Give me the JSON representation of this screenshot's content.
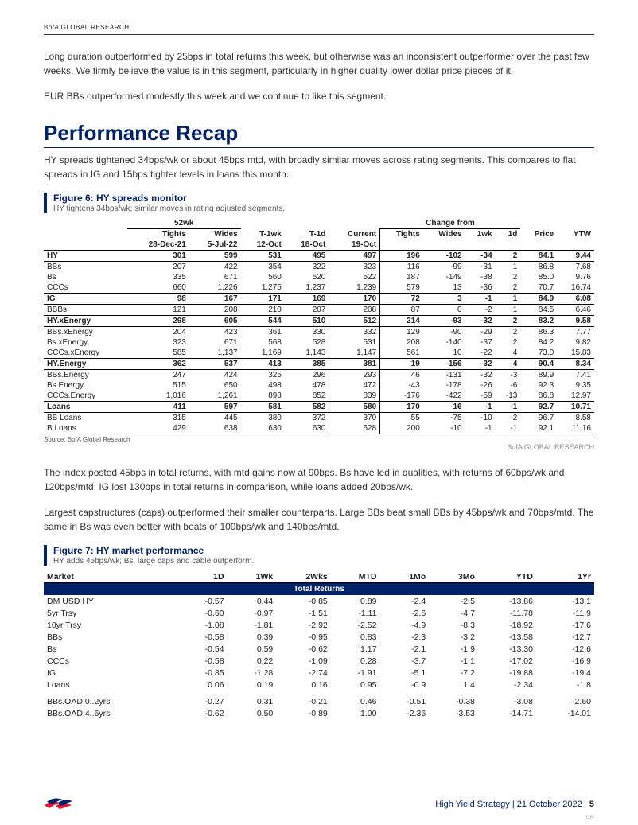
{
  "header": {
    "brand": "BofA GLOBAL RESEARCH"
  },
  "intro": {
    "p1": "Long duration outperformed by 25bps in total returns this week, but otherwise was an inconsistent outperformer over the past few weeks. We firmly believe the value is in this segment, particularly in higher quality lower dollar price pieces of it.",
    "p2": "EUR BBs outperformed modestly this week and we continue to like this segment."
  },
  "section": {
    "title": "Performance Recap",
    "lead": "HY spreads tightened 34bps/wk or about 45bps mtd, with broadly similar moves across rating segments. This compares to flat spreads in IG and 15bps tighter levels in loans this month."
  },
  "fig6": {
    "title": "Figure 6: HY spreads monitor",
    "sub": "HY tightens 34bps/wk; similar moves in rating adjusted segments.",
    "source": "Source: BofA Global Research",
    "attrib": "BofA GLOBAL RESEARCH",
    "head_top": {
      "w52": "52wk",
      "chg": "Change from"
    },
    "head_mid": {
      "tights": "Tights",
      "wides": "Wides",
      "t1wk": "T-1wk",
      "t1d": "T-1d",
      "current": "Current",
      "ct": "Tights",
      "cw": "Wides",
      "c1w": "1wk",
      "c1d": "1d",
      "price": "Price",
      "ytw": "YTW"
    },
    "head_dates": {
      "tights": "28-Dec-21",
      "wides": "5-Jul-22",
      "t1wk": "12-Oct",
      "t1d": "18-Oct",
      "current": "19-Oct"
    },
    "groups": [
      {
        "name": "HY",
        "head": [
          "301",
          "599",
          "531",
          "495",
          "497",
          "196",
          "-102",
          "-34",
          "2",
          "84.1",
          "9.44"
        ],
        "rows": [
          {
            "label": "BBs",
            "v": [
              "207",
              "422",
              "354",
              "322",
              "323",
              "116",
              "-99",
              "-31",
              "1",
              "86.8",
              "7.68"
            ]
          },
          {
            "label": "Bs",
            "v": [
              "335",
              "671",
              "560",
              "520",
              "522",
              "187",
              "-149",
              "-38",
              "2",
              "85.0",
              "9.76"
            ]
          },
          {
            "label": "CCCs",
            "v": [
              "660",
              "1,226",
              "1,275",
              "1,237",
              "1,239",
              "579",
              "13",
              "-36",
              "2",
              "70.7",
              "16.74"
            ]
          }
        ]
      },
      {
        "name": "IG",
        "head": [
          "98",
          "167",
          "171",
          "169",
          "170",
          "72",
          "3",
          "-1",
          "1",
          "84.9",
          "6.08"
        ],
        "rows": [
          {
            "label": "BBBs",
            "v": [
              "121",
              "208",
              "210",
              "207",
              "208",
              "87",
              "0",
              "-2",
              "1",
              "84.5",
              "6.46"
            ]
          }
        ]
      },
      {
        "name": "HY.xEnergy",
        "head": [
          "298",
          "605",
          "544",
          "510",
          "512",
          "214",
          "-93",
          "-32",
          "2",
          "83.2",
          "9.58"
        ],
        "rows": [
          {
            "label": "BBs.xEnergy",
            "v": [
              "204",
              "423",
              "361",
              "330",
              "332",
              "129",
              "-90",
              "-29",
              "2",
              "86.3",
              "7.77"
            ]
          },
          {
            "label": "Bs.xEnergy",
            "v": [
              "323",
              "671",
              "568",
              "528",
              "531",
              "208",
              "-140",
              "-37",
              "2",
              "84.2",
              "9.82"
            ]
          },
          {
            "label": "CCCs.xEnergy",
            "v": [
              "585",
              "1,137",
              "1,169",
              "1,143",
              "1,147",
              "561",
              "10",
              "-22",
              "4",
              "73.0",
              "15.83"
            ]
          }
        ]
      },
      {
        "name": "HY.Energy",
        "head": [
          "362",
          "537",
          "413",
          "385",
          "381",
          "19",
          "-156",
          "-32",
          "-4",
          "90.4",
          "8.34"
        ],
        "rows": [
          {
            "label": "BBs.Energy",
            "v": [
              "247",
              "424",
              "325",
              "296",
              "293",
              "46",
              "-131",
              "-32",
              "-3",
              "89.9",
              "7.41"
            ]
          },
          {
            "label": "Bs.Energy",
            "v": [
              "515",
              "650",
              "498",
              "478",
              "472",
              "-43",
              "-178",
              "-26",
              "-6",
              "92.3",
              "9.35"
            ]
          },
          {
            "label": "CCCs.Energy",
            "v": [
              "1,016",
              "1,261",
              "898",
              "852",
              "839",
              "-176",
              "-422",
              "-59",
              "-13",
              "86.8",
              "12.97"
            ]
          }
        ]
      },
      {
        "name": "Loans",
        "head": [
          "411",
          "597",
          "581",
          "582",
          "580",
          "170",
          "-16",
          "-1",
          "-1",
          "92.7",
          "10.71"
        ],
        "rows": [
          {
            "label": "BB Loans",
            "v": [
              "315",
              "445",
              "380",
              "372",
              "370",
              "55",
              "-75",
              "-10",
              "-2",
              "96.7",
              "8.58"
            ]
          },
          {
            "label": "B Loans",
            "v": [
              "429",
              "638",
              "630",
              "630",
              "628",
              "200",
              "-10",
              "-1",
              "-1",
              "92.1",
              "11.16"
            ]
          }
        ]
      }
    ]
  },
  "mid": {
    "p1": "The index posted 45bps in total returns, with mtd gains now at 90bps. Bs have led in qualities, with returns of 60bps/wk and 120bps/mtd. IG lost 130bps in total returns in comparison, while loans added 20bps/wk.",
    "p2": "Largest capstructures (caps) outperformed their smaller counterparts. Large BBs beat small BBs by 45bps/wk and 70bps/mtd. The same in Bs was even better with beats of 100bps/wk and 140bps/mtd."
  },
  "fig7": {
    "title": "Figure 7: HY market performance",
    "sub": "HY adds 45bps/wk; Bs, large caps and cable outperform.",
    "cols": [
      "Market",
      "1D",
      "1Wk",
      "2Wks",
      "MTD",
      "1Mo",
      "3Mo",
      "YTD",
      "1Yr"
    ],
    "sub_header": "Total Returns",
    "rows": [
      {
        "label": "DM USD HY",
        "v": [
          "-0.57",
          "0.44",
          "-0.85",
          "0.89",
          "-2.4",
          "-2.5",
          "-13.86",
          "-13.1"
        ]
      },
      {
        "label": "5yr Trsy",
        "v": [
          "-0.60",
          "-0.97",
          "-1.51",
          "-1.11",
          "-2.6",
          "-4.7",
          "-11.78",
          "-11.9"
        ]
      },
      {
        "label": "10yr Trsy",
        "v": [
          "-1.08",
          "-1.81",
          "-2.92",
          "-2.52",
          "-4.9",
          "-8.3",
          "-18.92",
          "-17.6"
        ]
      },
      {
        "label": "BBs",
        "v": [
          "-0.58",
          "0.39",
          "-0.95",
          "0.83",
          "-2.3",
          "-3.2",
          "-13.58",
          "-12.7"
        ]
      },
      {
        "label": "Bs",
        "v": [
          "-0.54",
          "0.59",
          "-0.62",
          "1.17",
          "-2.1",
          "-1.9",
          "-13.30",
          "-12.6"
        ]
      },
      {
        "label": "CCCs",
        "v": [
          "-0.58",
          "0.22",
          "-1.09",
          "0.28",
          "-3.7",
          "-1.1",
          "-17.02",
          "-16.9"
        ]
      },
      {
        "label": "IG",
        "v": [
          "-0.85",
          "-1.28",
          "-2.74",
          "-1.91",
          "-5.1",
          "-7.2",
          "-19.88",
          "-19.4"
        ]
      },
      {
        "label": "Loans",
        "v": [
          "0.06",
          "0.19",
          "0.16",
          "0.95",
          "-0.9",
          "1.4",
          "-2.34",
          "-1.8"
        ]
      }
    ],
    "rows2": [
      {
        "label": "BBs.OAD:0..2yrs",
        "v": [
          "-0.27",
          "0.31",
          "-0.21",
          "0.46",
          "-0.51",
          "-0.38",
          "-3.08",
          "-2.60"
        ]
      },
      {
        "label": "BBs.OAD:4..6yrs",
        "v": [
          "-0.62",
          "0.50",
          "-0.89",
          "1.00",
          "-2.36",
          "-3.53",
          "-14.71",
          "-14.01"
        ]
      }
    ]
  },
  "footer": {
    "title": "High Yield Strategy",
    "date": "21 October 2022",
    "page": "5",
    "cr": "CR"
  },
  "colors": {
    "navy": "#012169",
    "red": "#e31837"
  }
}
